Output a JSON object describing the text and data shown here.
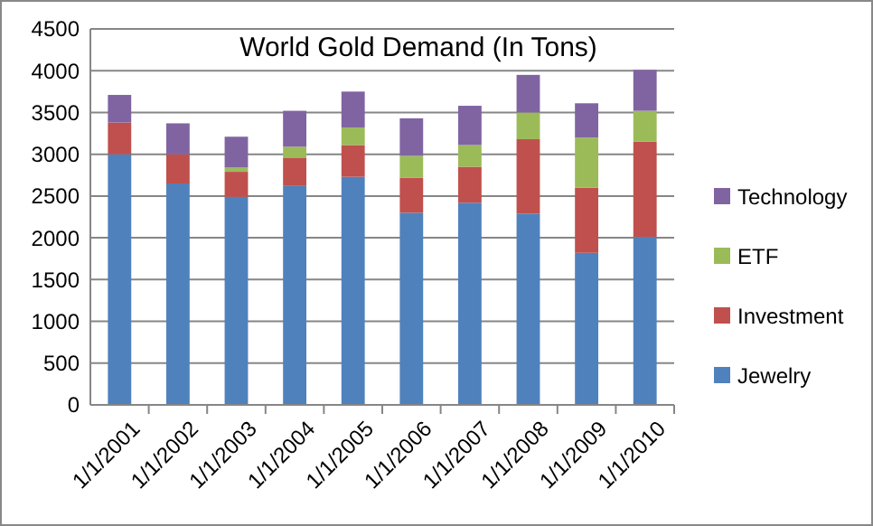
{
  "chart_data": {
    "type": "bar",
    "title": "World Gold Demand (In Tons)",
    "stacked": true,
    "categories": [
      "1/1/2001",
      "1/1/2002",
      "1/1/2003",
      "1/1/2004",
      "1/1/2005",
      "1/1/2006",
      "1/1/2007",
      "1/1/2008",
      "1/1/2009",
      "1/1/2010"
    ],
    "series": [
      {
        "name": "Jewelry",
        "color": "#4f81bd",
        "values": [
          3000,
          2650,
          2490,
          2620,
          2730,
          2300,
          2420,
          2290,
          1820,
          2010
        ]
      },
      {
        "name": "Investment",
        "color": "#c0504d",
        "values": [
          380,
          350,
          300,
          340,
          380,
          420,
          430,
          890,
          780,
          1140
        ]
      },
      {
        "name": "ETF",
        "color": "#9bbb59",
        "values": [
          0,
          0,
          50,
          130,
          210,
          260,
          260,
          320,
          600,
          370
        ]
      },
      {
        "name": "Technology",
        "color": "#8064a2",
        "values": [
          330,
          370,
          370,
          430,
          430,
          450,
          470,
          450,
          410,
          490
        ]
      }
    ],
    "ylim": [
      0,
      4500
    ],
    "yticks": [
      0,
      500,
      1000,
      1500,
      2000,
      2500,
      3000,
      3500,
      4000,
      4500
    ],
    "grid": "y",
    "legend": "right"
  }
}
